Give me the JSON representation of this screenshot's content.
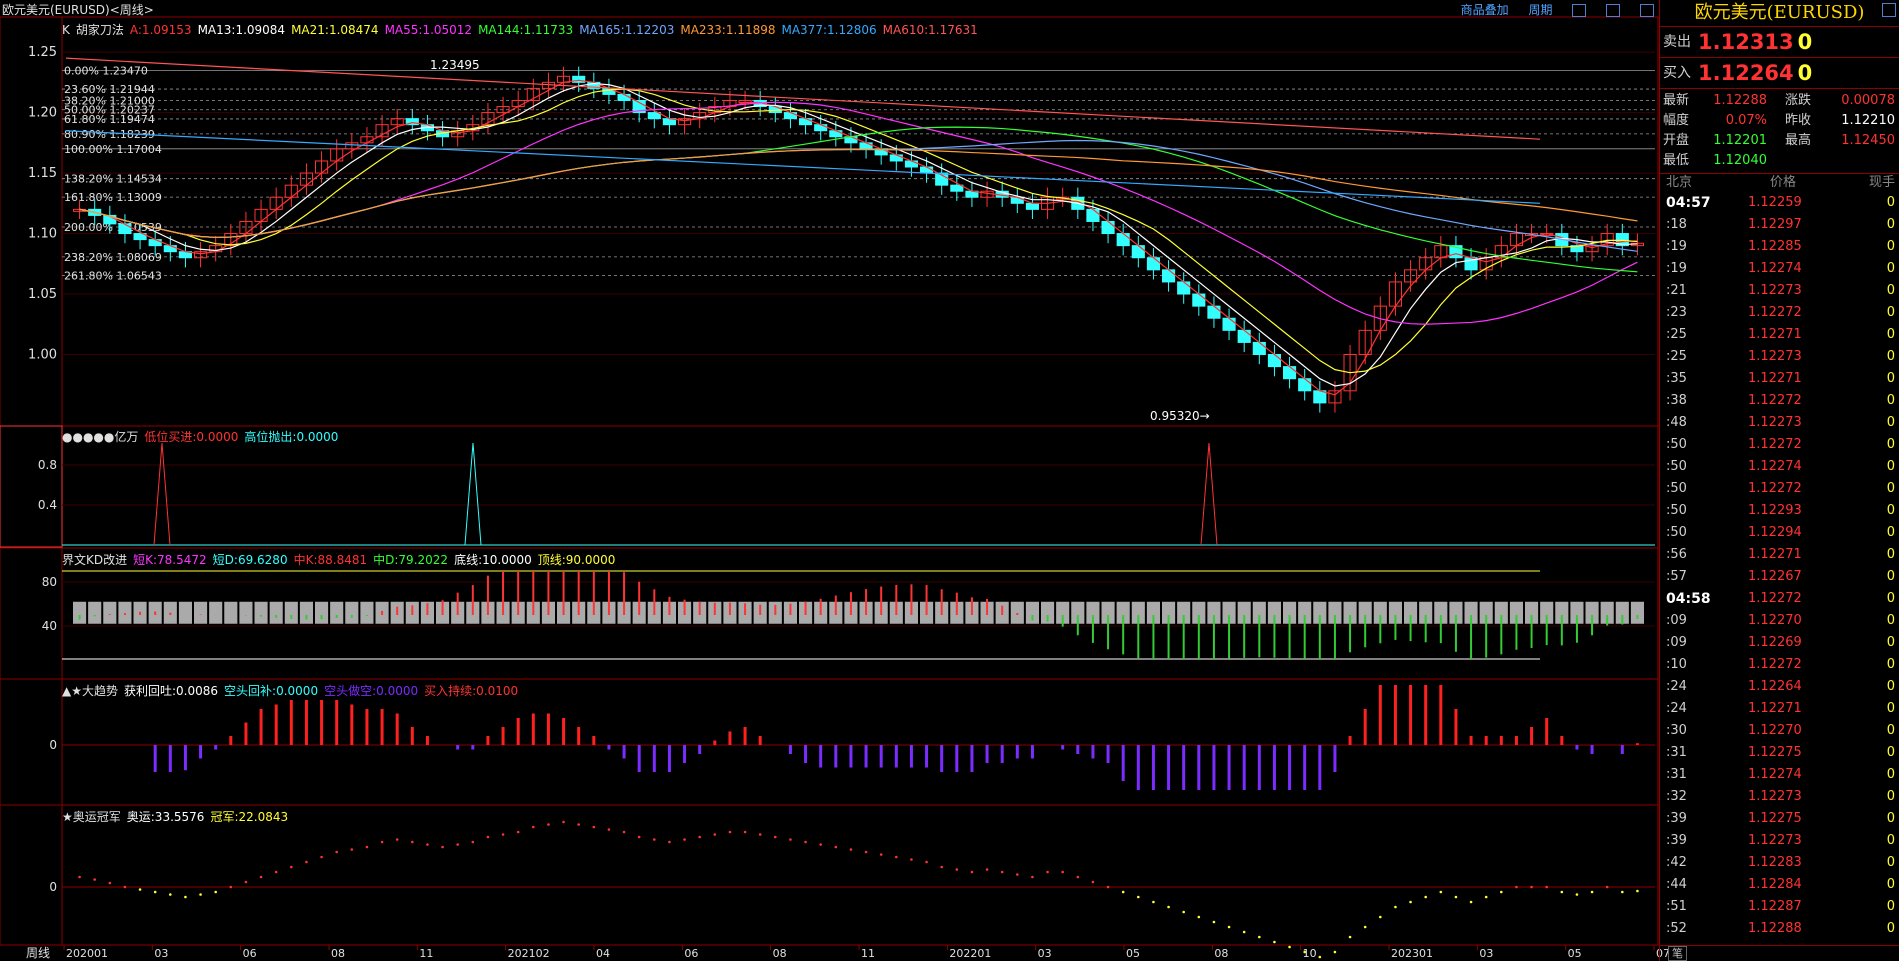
{
  "window": {
    "title": "欧元美元(EURUSD)<周线>",
    "links": [
      "商品叠加",
      "周期"
    ]
  },
  "main_panel": {
    "legend": [
      {
        "text": "K",
        "color": "#e0e0e0"
      },
      {
        "text": "胡家刀法",
        "color": "#e0e0e0"
      },
      {
        "text": "A:1.09153",
        "color": "#ff3333"
      },
      {
        "text": "MA13:1.09084",
        "color": "#ffffff"
      },
      {
        "text": "MA21:1.08474",
        "color": "#ffff33"
      },
      {
        "text": "MA55:1.05012",
        "color": "#ff33ff"
      },
      {
        "text": "MA144:1.11733",
        "color": "#33ff33"
      },
      {
        "text": "MA165:1.12203",
        "color": "#6fa8ff"
      },
      {
        "text": "MA233:1.11898",
        "color": "#ff9933"
      },
      {
        "text": "MA377:1.12806",
        "color": "#33aaff"
      },
      {
        "text": "MA610:1.17631",
        "color": "#ff5555"
      }
    ],
    "y_ticks": [
      "1.25",
      "1.20",
      "1.15",
      "1.10",
      "1.05",
      "1.00"
    ],
    "fib_levels": [
      {
        "label": "0.00% 1.23470",
        "value": 1.2347
      },
      {
        "label": "23.60% 1.21944",
        "value": 1.21944
      },
      {
        "label": "38.20% 1.21000",
        "value": 1.21
      },
      {
        "label": "50.00% 1.20237",
        "value": 1.20237
      },
      {
        "label": "61.80% 1.19474",
        "value": 1.19474
      },
      {
        "label": "80.90% 1.18239",
        "value": 1.18239
      },
      {
        "label": "100.00% 1.17004",
        "value": 1.17004
      },
      {
        "label": "138.20% 1.14534",
        "value": 1.14534
      },
      {
        "label": "161.80% 1.13009",
        "value": 1.13009
      },
      {
        "label": "200.00% 1.10539",
        "value": 1.10539
      },
      {
        "label": "238.20% 1.08069",
        "value": 1.08069
      },
      {
        "label": "261.80% 1.06543",
        "value": 1.06543
      }
    ],
    "high_label": "1.23495",
    "low_label": "0.95320→"
  },
  "panel2": {
    "legend": [
      {
        "text": "●●●●●亿万",
        "color": "#e0e0e0"
      },
      {
        "text": "低位买进:0.0000",
        "color": "#ff3333"
      },
      {
        "text": "高位抛出:0.0000",
        "color": "#33ffff"
      }
    ],
    "y_ticks": [
      "0.8",
      "0.4"
    ]
  },
  "panel3": {
    "legend": [
      {
        "text": "界文KD改进",
        "color": "#e0e0e0"
      },
      {
        "text": "短K:78.5472",
        "color": "#ff33ff"
      },
      {
        "text": "短D:69.6280",
        "color": "#33ffff"
      },
      {
        "text": "中K:88.8481",
        "color": "#ff3333"
      },
      {
        "text": "中D:79.2022",
        "color": "#33ff33"
      },
      {
        "text": "底线:10.0000",
        "color": "#ffffff"
      },
      {
        "text": "顶线:90.0000",
        "color": "#ffff33"
      }
    ],
    "y_ticks": [
      "80",
      "40"
    ]
  },
  "panel4": {
    "legend": [
      {
        "text": "▲★大趋势",
        "color": "#e0e0e0"
      },
      {
        "text": "获利回吐:0.0086",
        "color": "#ffffff"
      },
      {
        "text": "空头回补:0.0000",
        "color": "#33ffff"
      },
      {
        "text": "空头做空:0.0000",
        "color": "#7b2cff"
      },
      {
        "text": "买入持续:0.0100",
        "color": "#ff3333"
      }
    ],
    "y_ticks": [
      "0"
    ]
  },
  "panel5": {
    "legend": [
      {
        "text": "★奥运冠军",
        "color": "#e0e0e0"
      },
      {
        "text": "奥运:33.5576",
        "color": "#ffffff"
      },
      {
        "text": "冠军:22.0843",
        "color": "#ffff33"
      }
    ],
    "y_ticks": [
      "0"
    ]
  },
  "x_axis": {
    "label": "周线",
    "ticks": [
      "202001",
      "03",
      "06",
      "08",
      "11",
      "202102",
      "04",
      "06",
      "08",
      "11",
      "202201",
      "03",
      "05",
      "08",
      "10",
      "202301",
      "03",
      "05",
      "07"
    ]
  },
  "quote": {
    "title": "欧元美元(EURUSD)",
    "sell_label": "卖出",
    "sell_price": "1.12313",
    "sell_vol": "0",
    "buy_label": "买入",
    "buy_price": "1.12264",
    "buy_vol": "0",
    "rows": [
      {
        "k1": "最新",
        "v1": "1.12288",
        "c1": "red",
        "k2": "涨跌",
        "v2": "0.00078",
        "c2": "red"
      },
      {
        "k1": "幅度",
        "v1": "0.07%",
        "c1": "red",
        "k2": "昨收",
        "v2": "1.12210",
        "c2": "white"
      },
      {
        "k1": "开盘",
        "v1": "1.12201",
        "c1": "green",
        "k2": "最高",
        "v2": "1.12450",
        "c2": "red"
      },
      {
        "k1": "最低",
        "v1": "1.12040",
        "c1": "green",
        "k2": "",
        "v2": "",
        "c2": "white"
      }
    ],
    "tick_headers": [
      "北京",
      "价格",
      "现手"
    ],
    "ticks": [
      {
        "t": "04:57",
        "p": "1.12259",
        "v": "0",
        "full": true
      },
      {
        "t": ":18",
        "p": "1.12297",
        "v": "0"
      },
      {
        "t": ":19",
        "p": "1.12285",
        "v": "0"
      },
      {
        "t": ":19",
        "p": "1.12274",
        "v": "0"
      },
      {
        "t": ":21",
        "p": "1.12273",
        "v": "0"
      },
      {
        "t": ":23",
        "p": "1.12272",
        "v": "0"
      },
      {
        "t": ":25",
        "p": "1.12271",
        "v": "0"
      },
      {
        "t": ":25",
        "p": "1.12273",
        "v": "0"
      },
      {
        "t": ":35",
        "p": "1.12271",
        "v": "0"
      },
      {
        "t": ":38",
        "p": "1.12272",
        "v": "0"
      },
      {
        "t": ":48",
        "p": "1.12273",
        "v": "0"
      },
      {
        "t": ":50",
        "p": "1.12272",
        "v": "0"
      },
      {
        "t": ":50",
        "p": "1.12274",
        "v": "0"
      },
      {
        "t": ":50",
        "p": "1.12272",
        "v": "0"
      },
      {
        "t": ":50",
        "p": "1.12293",
        "v": "0"
      },
      {
        "t": ":50",
        "p": "1.12294",
        "v": "0"
      },
      {
        "t": ":56",
        "p": "1.12271",
        "v": "0"
      },
      {
        "t": ":57",
        "p": "1.12267",
        "v": "0"
      },
      {
        "t": "04:58",
        "p": "1.12272",
        "v": "0",
        "full": true
      },
      {
        "t": ":09",
        "p": "1.12270",
        "v": "0"
      },
      {
        "t": ":09",
        "p": "1.12269",
        "v": "0"
      },
      {
        "t": ":10",
        "p": "1.12272",
        "v": "0"
      },
      {
        "t": ":24",
        "p": "1.12264",
        "v": "0"
      },
      {
        "t": ":24",
        "p": "1.12271",
        "v": "0"
      },
      {
        "t": ":30",
        "p": "1.12270",
        "v": "0"
      },
      {
        "t": ":31",
        "p": "1.12275",
        "v": "0"
      },
      {
        "t": ":31",
        "p": "1.12274",
        "v": "0"
      },
      {
        "t": ":32",
        "p": "1.12273",
        "v": "0"
      },
      {
        "t": ":39",
        "p": "1.12275",
        "v": "0"
      },
      {
        "t": ":39",
        "p": "1.12273",
        "v": "0"
      },
      {
        "t": ":42",
        "p": "1.12283",
        "v": "0"
      },
      {
        "t": ":44",
        "p": "1.12284",
        "v": "0"
      },
      {
        "t": ":51",
        "p": "1.12287",
        "v": "0"
      },
      {
        "t": ":52",
        "p": "1.12288",
        "v": "0"
      }
    ],
    "footer_tab": "笔"
  },
  "chart_data": {
    "type": "candlestick",
    "y_range": [
      0.95,
      1.26
    ],
    "close_series": [
      1.12,
      1.115,
      1.108,
      1.1,
      1.095,
      1.09,
      1.085,
      1.08,
      1.085,
      1.09,
      1.1,
      1.11,
      1.12,
      1.13,
      1.14,
      1.15,
      1.16,
      1.17,
      1.175,
      1.18,
      1.19,
      1.195,
      1.19,
      1.185,
      1.18,
      1.185,
      1.19,
      1.2,
      1.205,
      1.21,
      1.22,
      1.225,
      1.23,
      1.225,
      1.22,
      1.215,
      1.21,
      1.2,
      1.195,
      1.19,
      1.195,
      1.2,
      1.205,
      1.21,
      1.21,
      1.205,
      1.2,
      1.195,
      1.19,
      1.185,
      1.18,
      1.175,
      1.17,
      1.165,
      1.16,
      1.155,
      1.15,
      1.14,
      1.135,
      1.13,
      1.135,
      1.13,
      1.125,
      1.12,
      1.13,
      1.13,
      1.12,
      1.11,
      1.1,
      1.09,
      1.08,
      1.07,
      1.06,
      1.05,
      1.04,
      1.03,
      1.02,
      1.01,
      1.0,
      0.99,
      0.98,
      0.97,
      0.96,
      0.97,
      1.0,
      1.02,
      1.04,
      1.06,
      1.07,
      1.08,
      1.09,
      1.08,
      1.07,
      1.08,
      1.09,
      1.1,
      1.1,
      1.1,
      1.09,
      1.085,
      1.09,
      1.1,
      1.09,
      1.092
    ]
  }
}
